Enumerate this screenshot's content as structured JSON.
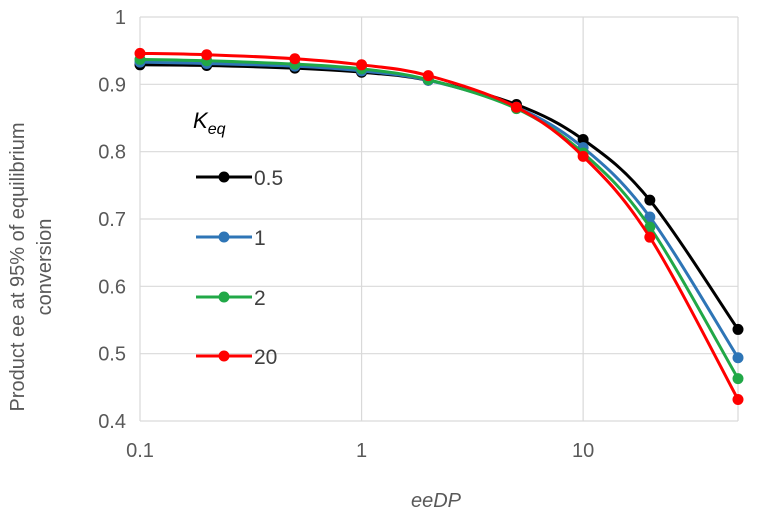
{
  "chart_data": {
    "type": "line",
    "xscale": "log",
    "title": "",
    "xlabel": "eeDP",
    "ylabel_line1": "Product ee at 95% of equilibrium",
    "ylabel_line2": "conversion",
    "xlim": [
      0.1,
      50
    ],
    "ylim": [
      0.4,
      1.0
    ],
    "x_ticks": [
      0.1,
      1,
      10
    ],
    "x_tick_labels": [
      "0.1",
      "1",
      "10"
    ],
    "y_ticks": [
      0.4,
      0.5,
      0.6,
      0.7,
      0.8,
      0.9,
      1.0
    ],
    "y_tick_labels": [
      "0.4",
      "0.5",
      "0.6",
      "0.7",
      "0.8",
      "0.9",
      "1"
    ],
    "grid": true,
    "legend_title": "K",
    "legend_title_sub": "eq",
    "legend_position": "center-left",
    "x": [
      0.1,
      0.2,
      0.5,
      1,
      2,
      5,
      10,
      20,
      50
    ],
    "series": [
      {
        "name": "0.5",
        "color": "#000000",
        "values": [
          0.929,
          0.928,
          0.924,
          0.918,
          0.906,
          0.87,
          0.818,
          0.728,
          0.536
        ]
      },
      {
        "name": "1",
        "color": "#2E75B6",
        "values": [
          0.933,
          0.931,
          0.927,
          0.92,
          0.906,
          0.866,
          0.806,
          0.703,
          0.494
        ]
      },
      {
        "name": "2",
        "color": "#21A847",
        "values": [
          0.937,
          0.935,
          0.93,
          0.923,
          0.907,
          0.864,
          0.798,
          0.688,
          0.463
        ]
      },
      {
        "name": "20",
        "color": "#FF0000",
        "values": [
          0.946,
          0.944,
          0.938,
          0.929,
          0.913,
          0.866,
          0.793,
          0.673,
          0.432
        ]
      }
    ]
  }
}
